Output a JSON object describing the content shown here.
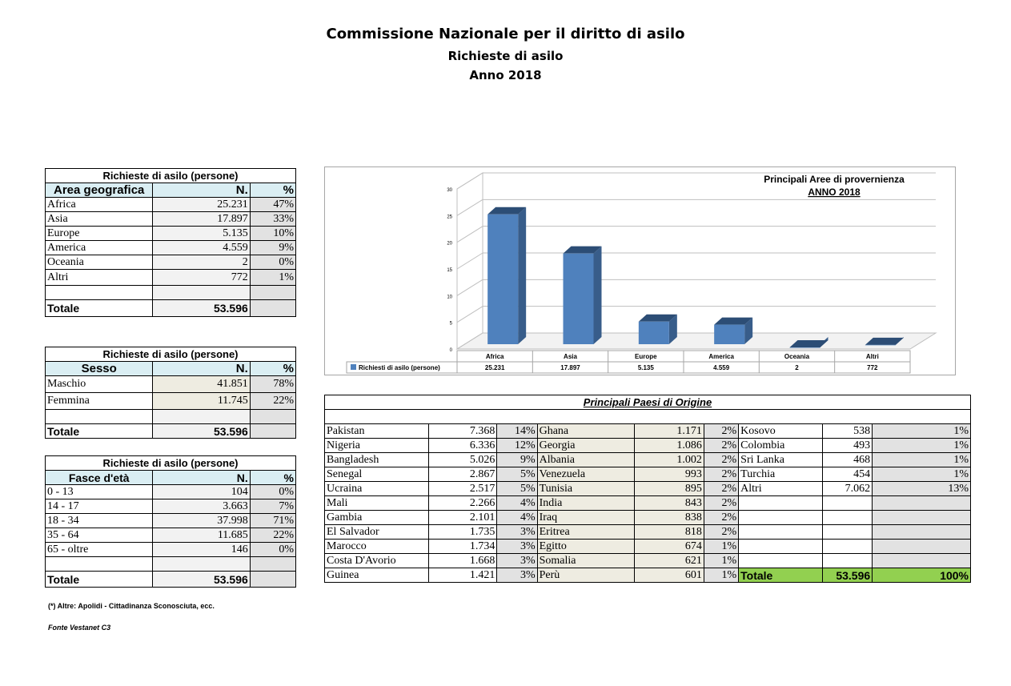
{
  "header": {
    "title": "Commissione Nazionale per il diritto di asilo",
    "subtitle": "Richieste di asilo",
    "year": "Anno 2018"
  },
  "area_table": {
    "title": "Richieste di asilo (persone)",
    "col1": "Area geografica",
    "col2": "N.",
    "col3": "%",
    "rows": [
      {
        "label": "Africa",
        "n": "25.231",
        "pct": "47%"
      },
      {
        "label": "Asia",
        "n": "17.897",
        "pct": "33%"
      },
      {
        "label": "Europe",
        "n": "5.135",
        "pct": "10%"
      },
      {
        "label": "America",
        "n": "4.559",
        "pct": "9%"
      },
      {
        "label": "Oceania",
        "n": "2",
        "pct": "0%"
      },
      {
        "label": "Altri",
        "n": "772",
        "pct": "1%"
      }
    ],
    "total_label": "Totale",
    "total_value": "53.596"
  },
  "sex_table": {
    "title": "Richieste di asilo (persone)",
    "col1": "Sesso",
    "col2": "N.",
    "col3": "%",
    "rows": [
      {
        "label": "Maschio",
        "n": "41.851",
        "pct": "78%"
      },
      {
        "label": "Femmina",
        "n": "11.745",
        "pct": "22%"
      }
    ],
    "total_label": "Totale",
    "total_value": "53.596"
  },
  "age_table": {
    "title": "Richieste di asilo (persone)",
    "col1": "Fasce d'età",
    "col2": "N.",
    "col3": "%",
    "rows": [
      {
        "label": "0 - 13",
        "n": "104",
        "pct": "0%"
      },
      {
        "label": "14 - 17",
        "n": "3.663",
        "pct": "7%"
      },
      {
        "label": "18 - 34",
        "n": "37.998",
        "pct": "71%"
      },
      {
        "label": "35 - 64",
        "n": "11.685",
        "pct": "22%"
      },
      {
        "label": "65 - oltre",
        "n": "146",
        "pct": "0%"
      }
    ],
    "total_label": "Totale",
    "total_value": "53.596"
  },
  "countries_table": {
    "title": "Principali Paesi di Origine",
    "col_a": [
      {
        "label": "Pakistan",
        "n": "7.368",
        "pct": "14%"
      },
      {
        "label": "Nigeria",
        "n": "6.336",
        "pct": "12%"
      },
      {
        "label": "Bangladesh",
        "n": "5.026",
        "pct": "9%"
      },
      {
        "label": "Senegal",
        "n": "2.867",
        "pct": "5%"
      },
      {
        "label": "Ucraina",
        "n": "2.517",
        "pct": "5%"
      },
      {
        "label": "Mali",
        "n": "2.266",
        "pct": "4%"
      },
      {
        "label": "Gambia",
        "n": "2.101",
        "pct": "4%"
      },
      {
        "label": "El Salvador",
        "n": "1.735",
        "pct": "3%"
      },
      {
        "label": "Marocco",
        "n": "1.734",
        "pct": "3%"
      },
      {
        "label": "Costa D'Avorio",
        "n": "1.668",
        "pct": "3%"
      },
      {
        "label": "Guinea",
        "n": "1.421",
        "pct": "3%"
      }
    ],
    "col_b": [
      {
        "label": "Ghana",
        "n": "1.171",
        "pct": "2%"
      },
      {
        "label": "Georgia",
        "n": "1.086",
        "pct": "2%"
      },
      {
        "label": "Albania",
        "n": "1.002",
        "pct": "2%"
      },
      {
        "label": "Venezuela",
        "n": "993",
        "pct": "2%"
      },
      {
        "label": "Tunisia",
        "n": "895",
        "pct": "2%"
      },
      {
        "label": "India",
        "n": "843",
        "pct": "2%"
      },
      {
        "label": "Iraq",
        "n": "838",
        "pct": "2%"
      },
      {
        "label": "Eritrea",
        "n": "818",
        "pct": "2%"
      },
      {
        "label": "Egitto",
        "n": "674",
        "pct": "1%"
      },
      {
        "label": "Somalia",
        "n": "621",
        "pct": "1%"
      },
      {
        "label": "Perù",
        "n": "601",
        "pct": "1%"
      }
    ],
    "col_c": [
      {
        "label": "Kosovo",
        "n": "538",
        "pct": "1%"
      },
      {
        "label": "Colombia",
        "n": "493",
        "pct": "1%"
      },
      {
        "label": "Sri Lanka",
        "n": "468",
        "pct": "1%"
      },
      {
        "label": "Turchia",
        "n": "454",
        "pct": "1%"
      },
      {
        "label": "Altri",
        "n": "7.062",
        "pct": "13%"
      }
    ],
    "total_label": "Totale",
    "total_value": "53.596",
    "total_pct": "100%"
  },
  "chart_data": {
    "type": "bar",
    "title": "Principali Aree di provernienza",
    "subtitle": "ANNO 2018",
    "categories": [
      "Africa",
      "Asia",
      "Europe",
      "America",
      "Oceania",
      "Altri"
    ],
    "series": [
      {
        "name": "Richiesti di asilo (persone)",
        "values": [
          25231,
          17897,
          5135,
          4559,
          2,
          772
        ]
      }
    ],
    "value_labels": [
      "25.231",
      "17.897",
      "5.135",
      "4.559",
      "2",
      "772"
    ],
    "y_ticks": [
      "0",
      "5",
      "10",
      "15",
      "20",
      "25",
      "30"
    ],
    "ylim": [
      0,
      30000
    ],
    "color": "#4f81bd",
    "legend_position": "bottom-table"
  },
  "notes": {
    "altri_note": "(*) Altre: Apolidi - Cittadinanza Sconosciuta, ecc.",
    "source": "Fonte Vestanet C3"
  }
}
